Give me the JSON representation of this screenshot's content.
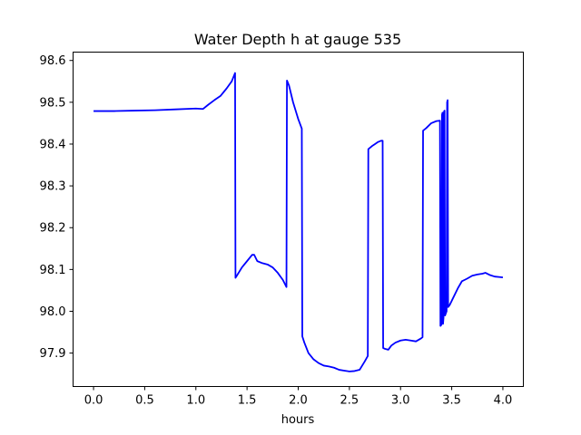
{
  "chart_data": {
    "type": "line",
    "title": "Water Depth h at gauge 535",
    "xlabel": "hours",
    "ylabel": "",
    "xlim": [
      -0.2,
      4.2
    ],
    "ylim": [
      97.82,
      98.62
    ],
    "xticks": [
      0.0,
      0.5,
      1.0,
      1.5,
      2.0,
      2.5,
      3.0,
      3.5,
      4.0
    ],
    "xtick_labels": [
      "0.0",
      "0.5",
      "1.0",
      "1.5",
      "2.0",
      "2.5",
      "3.0",
      "3.5",
      "4.0"
    ],
    "yticks": [
      97.9,
      98.0,
      98.1,
      98.2,
      98.3,
      98.4,
      98.5,
      98.6
    ],
    "ytick_labels": [
      "97.9",
      "98.0",
      "98.1",
      "98.2",
      "98.3",
      "98.4",
      "98.5",
      "98.6"
    ],
    "grid": false,
    "series": [
      {
        "color": "#0000ff",
        "points": [
          [
            0.0,
            98.479
          ],
          [
            0.2,
            98.479
          ],
          [
            0.4,
            98.48
          ],
          [
            0.6,
            98.481
          ],
          [
            0.8,
            98.483
          ],
          [
            1.0,
            98.485
          ],
          [
            1.07,
            98.484
          ],
          [
            1.12,
            98.494
          ],
          [
            1.18,
            98.505
          ],
          [
            1.24,
            98.515
          ],
          [
            1.3,
            98.533
          ],
          [
            1.35,
            98.55
          ],
          [
            1.383,
            98.57
          ],
          [
            1.387,
            98.08
          ],
          [
            1.4,
            98.085
          ],
          [
            1.45,
            98.105
          ],
          [
            1.5,
            98.12
          ],
          [
            1.55,
            98.135
          ],
          [
            1.57,
            98.135
          ],
          [
            1.6,
            98.12
          ],
          [
            1.65,
            98.115
          ],
          [
            1.7,
            98.112
          ],
          [
            1.75,
            98.105
          ],
          [
            1.8,
            98.092
          ],
          [
            1.85,
            98.075
          ],
          [
            1.885,
            98.058
          ],
          [
            1.89,
            98.552
          ],
          [
            1.91,
            98.54
          ],
          [
            1.95,
            98.5
          ],
          [
            2.0,
            98.46
          ],
          [
            2.035,
            98.437
          ],
          [
            2.04,
            97.94
          ],
          [
            2.06,
            97.925
          ],
          [
            2.1,
            97.9
          ],
          [
            2.15,
            97.885
          ],
          [
            2.2,
            97.876
          ],
          [
            2.25,
            97.87
          ],
          [
            2.3,
            97.868
          ],
          [
            2.35,
            97.865
          ],
          [
            2.4,
            97.86
          ],
          [
            2.45,
            97.858
          ],
          [
            2.5,
            97.856
          ],
          [
            2.55,
            97.857
          ],
          [
            2.6,
            97.86
          ],
          [
            2.65,
            97.88
          ],
          [
            2.68,
            97.893
          ],
          [
            2.685,
            98.388
          ],
          [
            2.72,
            98.395
          ],
          [
            2.75,
            98.4
          ],
          [
            2.78,
            98.405
          ],
          [
            2.81,
            98.408
          ],
          [
            2.825,
            98.408
          ],
          [
            2.83,
            97.912
          ],
          [
            2.85,
            97.91
          ],
          [
            2.88,
            97.908
          ],
          [
            2.91,
            97.918
          ],
          [
            2.95,
            97.925
          ],
          [
            3.0,
            97.93
          ],
          [
            3.05,
            97.932
          ],
          [
            3.1,
            97.93
          ],
          [
            3.15,
            97.928
          ],
          [
            3.2,
            97.935
          ],
          [
            3.215,
            97.938
          ],
          [
            3.22,
            98.432
          ],
          [
            3.25,
            98.438
          ],
          [
            3.3,
            98.45
          ],
          [
            3.35,
            98.455
          ],
          [
            3.385,
            98.456
          ],
          [
            3.39,
            97.965
          ],
          [
            3.4,
            97.968
          ],
          [
            3.405,
            98.47
          ],
          [
            3.41,
            98.475
          ],
          [
            3.415,
            97.97
          ],
          [
            3.42,
            97.985
          ],
          [
            3.425,
            98.478
          ],
          [
            3.43,
            98.48
          ],
          [
            3.435,
            97.99
          ],
          [
            3.45,
            98.0
          ],
          [
            3.455,
            98.5
          ],
          [
            3.46,
            98.505
          ],
          [
            3.465,
            98.01
          ],
          [
            3.48,
            98.015
          ],
          [
            3.52,
            98.035
          ],
          [
            3.56,
            98.055
          ],
          [
            3.6,
            98.072
          ],
          [
            3.65,
            98.078
          ],
          [
            3.7,
            98.085
          ],
          [
            3.75,
            98.088
          ],
          [
            3.8,
            98.09
          ],
          [
            3.83,
            98.092
          ],
          [
            3.87,
            98.087
          ],
          [
            3.92,
            98.083
          ],
          [
            3.96,
            98.082
          ],
          [
            4.0,
            98.081
          ]
        ]
      }
    ]
  }
}
